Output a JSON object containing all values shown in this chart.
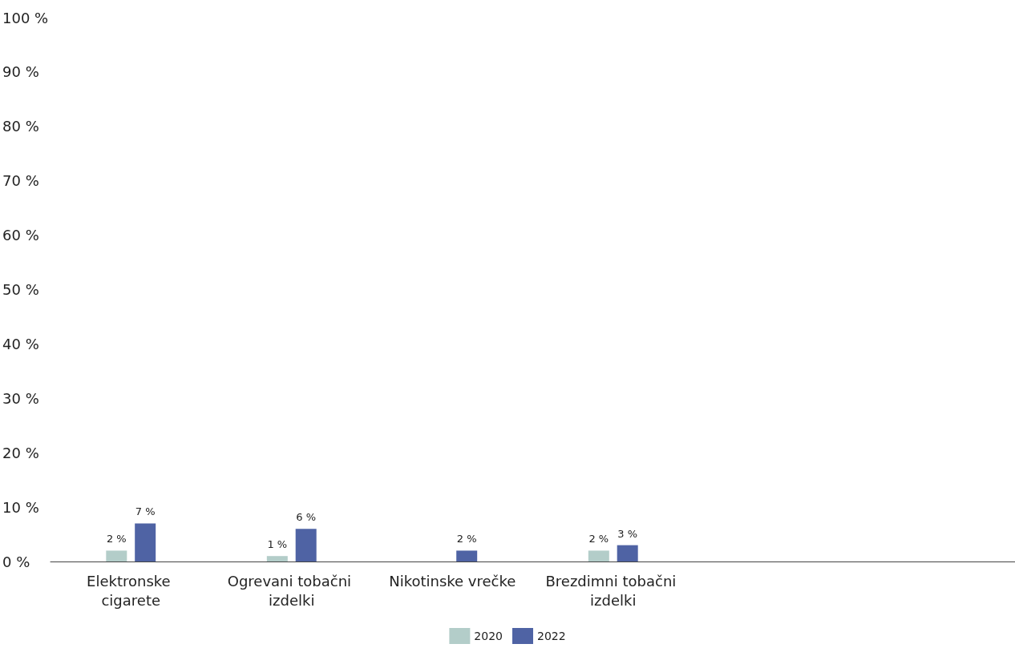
{
  "chart_data": {
    "type": "bar",
    "categories": [
      "Elektronske cigarete",
      "Ogrevani tobačni izdelki",
      "Nikotinske vrečke",
      "Brezdimni tobačni izdelki",
      null,
      null
    ],
    "series": [
      {
        "name": "2020",
        "color": "#b3cdc9",
        "values": [
          2,
          1,
          null,
          2,
          null,
          null
        ],
        "value_labels": [
          "2 %",
          "1 %",
          null,
          "2 %",
          null,
          null
        ]
      },
      {
        "name": "2022",
        "color": "#4f63a4",
        "values": [
          7,
          6,
          2,
          3,
          null,
          null
        ],
        "value_labels": [
          "7 %",
          "6 %",
          "2 %",
          "3 %",
          null,
          null
        ]
      }
    ],
    "ylim": [
      0,
      100
    ],
    "yticks": [
      {
        "value": 0,
        "label": "0 %"
      },
      {
        "value": 10,
        "label": "10 %"
      },
      {
        "value": 20,
        "label": "20 %"
      },
      {
        "value": 30,
        "label": "30 %"
      },
      {
        "value": 40,
        "label": "40 %"
      },
      {
        "value": 50,
        "label": "50 %"
      },
      {
        "value": 60,
        "label": "60 %"
      },
      {
        "value": 70,
        "label": "70 %"
      },
      {
        "value": 80,
        "label": "80 %"
      },
      {
        "value": 90,
        "label": "90 %"
      },
      {
        "value": 100,
        "label": "100 %"
      }
    ],
    "grid": false,
    "legend": "bottom"
  }
}
